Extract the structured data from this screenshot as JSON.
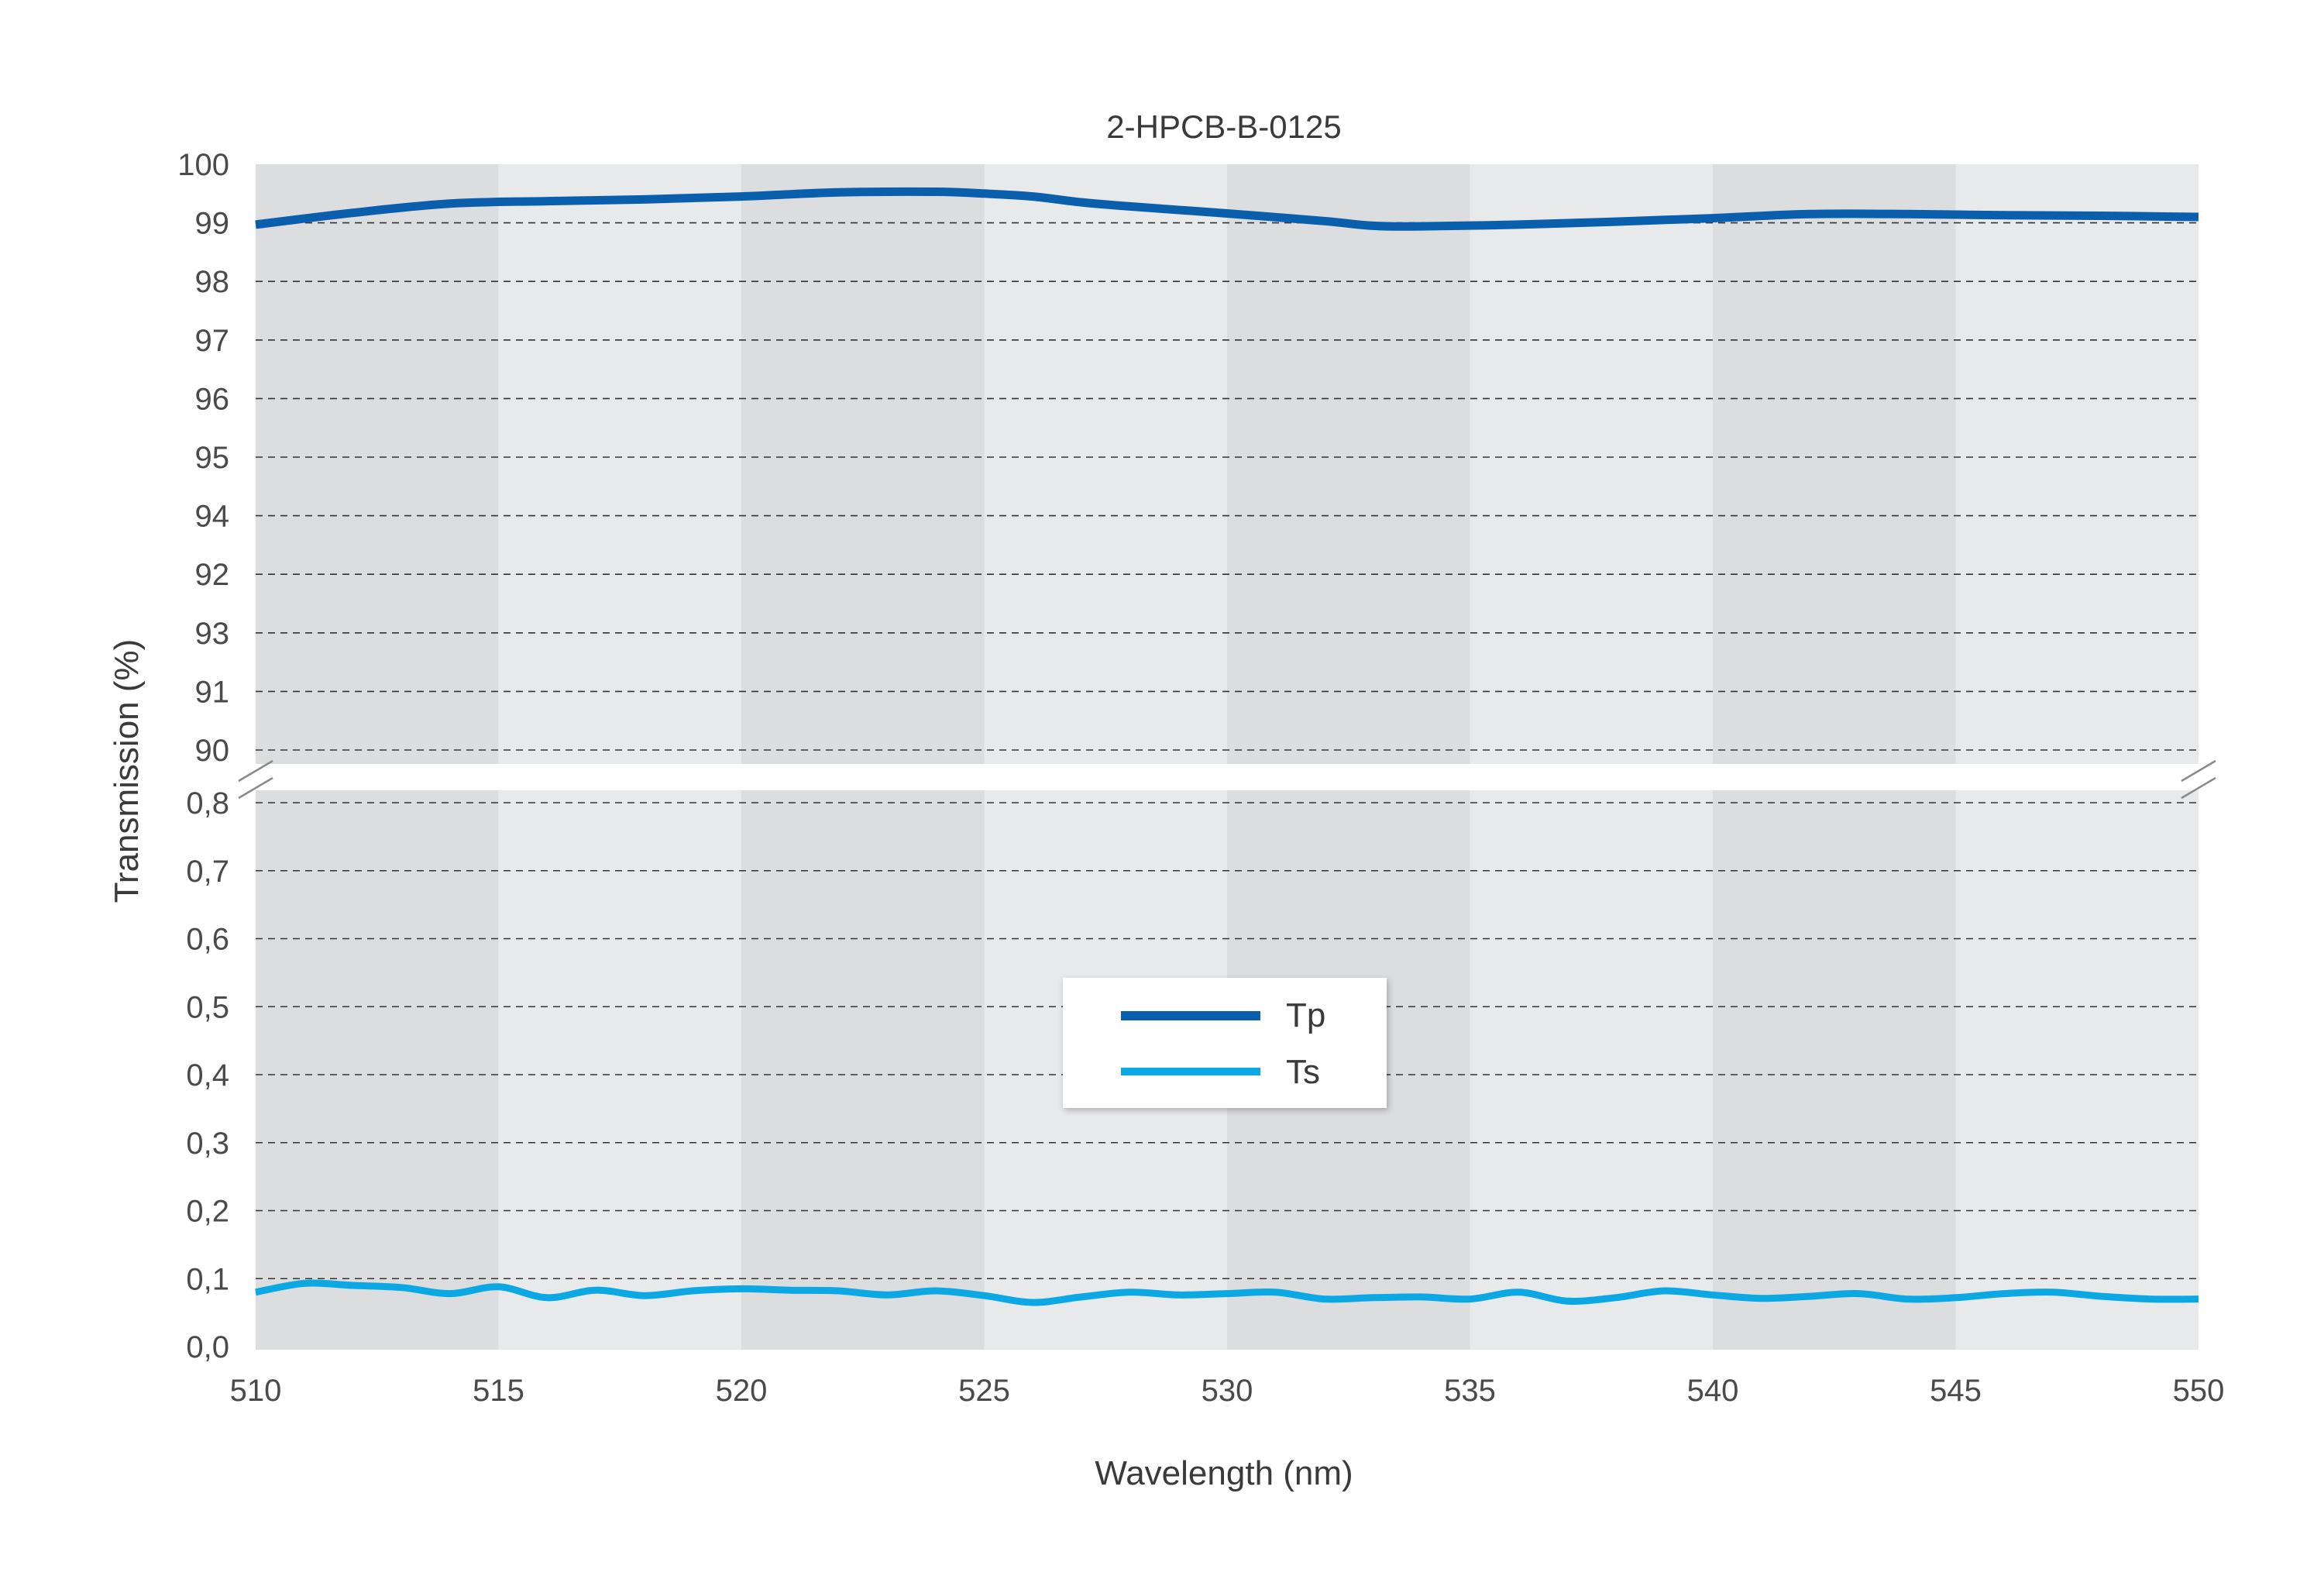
{
  "chart_data": {
    "type": "line",
    "title": "2-HPCB-B-0125",
    "xlabel": "Wavelength (nm)",
    "ylabel": "Transmission (%)",
    "xlim": [
      510,
      550
    ],
    "x_ticks": [
      "510",
      "515",
      "520",
      "525",
      "530",
      "535",
      "540",
      "545",
      "550"
    ],
    "y_upper_ticks": [
      "100",
      "99",
      "98",
      "97",
      "96",
      "95",
      "94",
      "92",
      "93",
      "91",
      "90"
    ],
    "y_lower_ticks": [
      "0,8",
      "0,7",
      "0,6",
      "0,5",
      "0,4",
      "0,3",
      "0,2",
      "0,1",
      "0,0"
    ],
    "ylim_upper": [
      90,
      100
    ],
    "ylim_lower": [
      0.0,
      0.8
    ],
    "axis_break": true,
    "grid": "horizontal dashed",
    "legend_position": "center",
    "series": [
      {
        "name": "Tp",
        "color": "#0a5fac",
        "panel": "upper",
        "x": [
          510,
          512,
          514,
          516,
          518,
          520,
          522,
          524,
          525,
          526,
          527,
          528,
          530,
          532,
          533,
          534,
          536,
          538,
          540,
          542,
          544,
          546,
          548,
          550
        ],
        "y": [
          98.97,
          99.17,
          99.33,
          99.37,
          99.4,
          99.45,
          99.52,
          99.53,
          99.5,
          99.45,
          99.35,
          99.28,
          99.16,
          99.03,
          98.95,
          98.94,
          98.97,
          99.02,
          99.08,
          99.15,
          99.15,
          99.13,
          99.12,
          99.1
        ]
      },
      {
        "name": "Ts",
        "color": "#0ca8e3",
        "panel": "lower",
        "x": [
          510,
          511,
          512,
          513,
          514,
          515,
          516,
          517,
          518,
          519,
          520,
          521,
          522,
          523,
          524,
          525,
          526,
          527,
          528,
          529,
          530,
          531,
          532,
          533,
          534,
          535,
          536,
          537,
          538,
          539,
          540,
          541,
          542,
          543,
          544,
          545,
          546,
          547,
          548,
          549,
          550
        ],
        "y": [
          0.08,
          0.093,
          0.09,
          0.087,
          0.078,
          0.088,
          0.072,
          0.083,
          0.075,
          0.082,
          0.085,
          0.083,
          0.082,
          0.076,
          0.082,
          0.075,
          0.065,
          0.073,
          0.08,
          0.076,
          0.078,
          0.08,
          0.07,
          0.072,
          0.073,
          0.07,
          0.08,
          0.067,
          0.072,
          0.082,
          0.076,
          0.071,
          0.074,
          0.078,
          0.07,
          0.072,
          0.078,
          0.08,
          0.074,
          0.07,
          0.07
        ]
      }
    ]
  },
  "legend": {
    "tp_label": "Tp",
    "ts_label": "Ts"
  },
  "colors": {
    "band_dark": "#dcdddf",
    "band_light": "#e8e9eb",
    "grid": "#333333"
  }
}
